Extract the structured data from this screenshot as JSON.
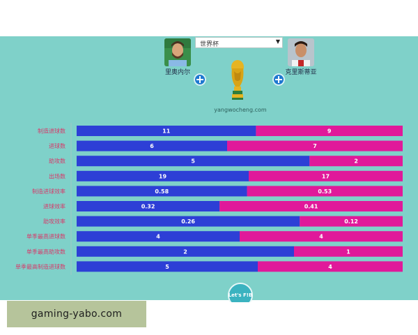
{
  "header": {
    "competition_select": {
      "value": "世界杯"
    },
    "left_player": {
      "name": "里奥内尔"
    },
    "right_player": {
      "name": "克里斯蒂亚"
    },
    "site_label": "yangwocheng.com"
  },
  "colors": {
    "background": "#7fd1c9",
    "left_bar": "#2d3fd6",
    "right_bar": "#e0199a",
    "label": "#d63a6a"
  },
  "footer_badge": "Let's F!B",
  "watermark": "gaming-yabo.com",
  "chart_data": {
    "type": "bar",
    "orientation": "horizontal",
    "stacked": "normalized",
    "categories": [
      "制造进球数",
      "进球数",
      "助攻数",
      "出场数",
      "制造进球效率",
      "进球效率",
      "助攻效率",
      "单季最高进球数",
      "单季最高助攻数",
      "单季最高制造进球数"
    ],
    "series": [
      {
        "name": "里奥内尔",
        "values": [
          11,
          6,
          5,
          19,
          0.58,
          0.32,
          0.26,
          4,
          2,
          5
        ],
        "labels": [
          "11",
          "6",
          "5",
          "19",
          "0.58",
          "0.32",
          "0.26",
          "4",
          "2",
          "5"
        ]
      },
      {
        "name": "克里斯蒂亚",
        "values": [
          9,
          7,
          2,
          17,
          0.53,
          0.41,
          0.12,
          4,
          1,
          4
        ],
        "labels": [
          "9",
          "7",
          "2",
          "17",
          "0.53",
          "0.41",
          "0.12",
          "4",
          "1",
          "4"
        ]
      }
    ]
  }
}
